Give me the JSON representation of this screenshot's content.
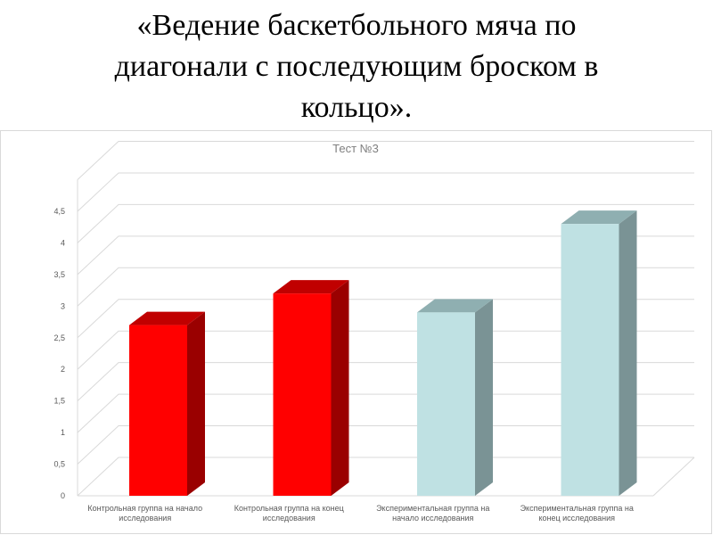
{
  "slide": {
    "title_lines": [
      "«Ведение баскетбольного мяча по",
      "диагонали с последующим броском в",
      "кольцо»."
    ]
  },
  "chart_data": {
    "type": "bar",
    "title": "Тест №3",
    "xlabel": "",
    "ylabel": "",
    "ylim": [
      0,
      4.5
    ],
    "yticks": [
      "0",
      "0,5",
      "1",
      "1,5",
      "2",
      "2,5",
      "3",
      "3,5",
      "4",
      "4,5"
    ],
    "categories": [
      [
        "Контрольная группа на начало",
        "исследования"
      ],
      [
        "Контрольная группа на конец",
        "исследования"
      ],
      [
        "Экспериментальная группа на",
        "начало исследования"
      ],
      [
        "Экспериментальная группа на",
        "конец исследования"
      ]
    ],
    "values": [
      2.7,
      3.2,
      2.9,
      4.3
    ],
    "three_d": true,
    "grid": true,
    "legend": "none",
    "colors": [
      {
        "front": "#ff0000",
        "top": "#c00000",
        "side": "#9a0000"
      },
      {
        "front": "#ff0000",
        "top": "#c00000",
        "side": "#9a0000"
      },
      {
        "front": "#bfe1e3",
        "top": "#8fafb1",
        "side": "#7a9395"
      },
      {
        "front": "#bfe1e3",
        "top": "#8fafb1",
        "side": "#7a9395"
      }
    ],
    "grid_color": "#d9d9d9"
  }
}
